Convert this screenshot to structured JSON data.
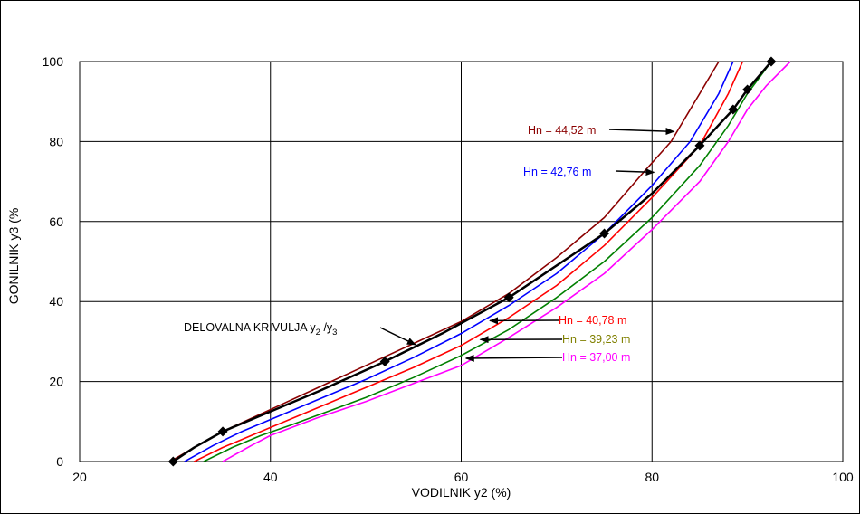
{
  "chart_data": {
    "type": "line",
    "title": "",
    "xlabel": "VODILNIK y2 (%)",
    "ylabel": "GONILNIK y3 (%",
    "xlim": [
      20,
      100
    ],
    "ylim": [
      0,
      100
    ],
    "xticks": [
      "20",
      "40",
      "60",
      "80",
      "100"
    ],
    "yticks": [
      "0",
      "20",
      "40",
      "60",
      "80",
      "100"
    ],
    "grid": true,
    "legend": "none",
    "series": [
      {
        "name": "Hn = 44,52 m",
        "color": "#8b0000",
        "x": [
          29.5,
          32,
          35,
          40,
          45,
          50,
          55,
          60,
          65,
          70,
          75,
          79,
          82,
          85,
          87
        ],
        "y": [
          0,
          3.5,
          7.5,
          13,
          18.5,
          24,
          29.5,
          35,
          42,
          51,
          61,
          72,
          80,
          92,
          100
        ]
      },
      {
        "name": "Hn = 42,76 m",
        "color": "#0000ff",
        "x": [
          31,
          34,
          37,
          40,
          45,
          50,
          55,
          60,
          65,
          70,
          75,
          80,
          84,
          87,
          88.5
        ],
        "y": [
          0,
          4,
          7.5,
          10.5,
          15.5,
          20.5,
          26,
          32,
          39,
          47,
          57,
          69,
          80,
          92,
          100
        ]
      },
      {
        "name": "Hn = 40,78 m",
        "color": "#ff0000",
        "x": [
          32,
          35,
          38,
          41,
          45,
          50,
          55,
          60,
          65,
          70,
          75,
          80,
          85,
          88,
          89.5
        ],
        "y": [
          0,
          3.5,
          6.5,
          9.5,
          13.5,
          18.5,
          23.5,
          29,
          36,
          44,
          54,
          66,
          79,
          92,
          100
        ]
      },
      {
        "name": "Hn = 39,23 m",
        "color": "#008000",
        "x": [
          33,
          36,
          39,
          42,
          46,
          50,
          55,
          60,
          65,
          70,
          75,
          80,
          85,
          88,
          90,
          92.5
        ],
        "y": [
          0,
          3.5,
          6.5,
          9,
          12.5,
          16,
          21,
          26.5,
          33,
          41,
          50,
          61,
          74,
          84,
          92,
          100
        ]
      },
      {
        "name": "Hn = 37,00 m",
        "color": "#ff00ff",
        "x": [
          35,
          38,
          40,
          45,
          50,
          55,
          60,
          65,
          70,
          75,
          80,
          85,
          88,
          90,
          92,
          94.5
        ],
        "y": [
          0,
          4,
          6.5,
          11,
          15,
          19.5,
          24,
          31,
          38.5,
          47,
          58,
          70,
          80,
          88,
          94,
          100
        ]
      },
      {
        "name": "DELOVALNA KRIVULJA y2 /y3",
        "color": "#000000",
        "markers": true,
        "x": [
          29.8,
          32,
          35,
          40,
          45,
          52,
          58,
          65,
          75,
          80,
          85,
          88.5,
          90,
          92.5
        ],
        "y": [
          0,
          3.5,
          7.5,
          12.5,
          17.5,
          25,
          32,
          41,
          57,
          67,
          79,
          88,
          93,
          100
        ],
        "marker_x": [
          29.8,
          35,
          52,
          65,
          75,
          85,
          88.5,
          90,
          92.5
        ],
        "marker_y": [
          0,
          7.5,
          25,
          41,
          57,
          79,
          88,
          93,
          100
        ]
      }
    ],
    "annotations": [
      {
        "text": "Hn = 44,52 m",
        "color": "#8b0000",
        "arrow_to_x": 82.3,
        "arrow_to_y": 82.5
      },
      {
        "text": "Hn = 42,76 m",
        "color": "#0000ff",
        "arrow_to_x": 80.2,
        "arrow_to_y": 72.3
      },
      {
        "text": "Hn = 40,78 m",
        "color": "#ff0000",
        "arrow_to_x": 63,
        "arrow_to_y": 35.2
      },
      {
        "text": "Hn = 39,23 m",
        "color": "#808000",
        "arrow_to_x": 62,
        "arrow_to_y": 30.5
      },
      {
        "text": "Hn = 37,00 m",
        "color": "#ff00ff",
        "arrow_to_x": 60.5,
        "arrow_to_y": 25.8
      },
      {
        "text_main": "DELOVALNA KRIVULJA y",
        "sub1": "2",
        "mid": " /y",
        "sub2": "3",
        "color": "#000000",
        "arrow_to_x": 55.2,
        "arrow_to_y": 29.2
      }
    ]
  }
}
